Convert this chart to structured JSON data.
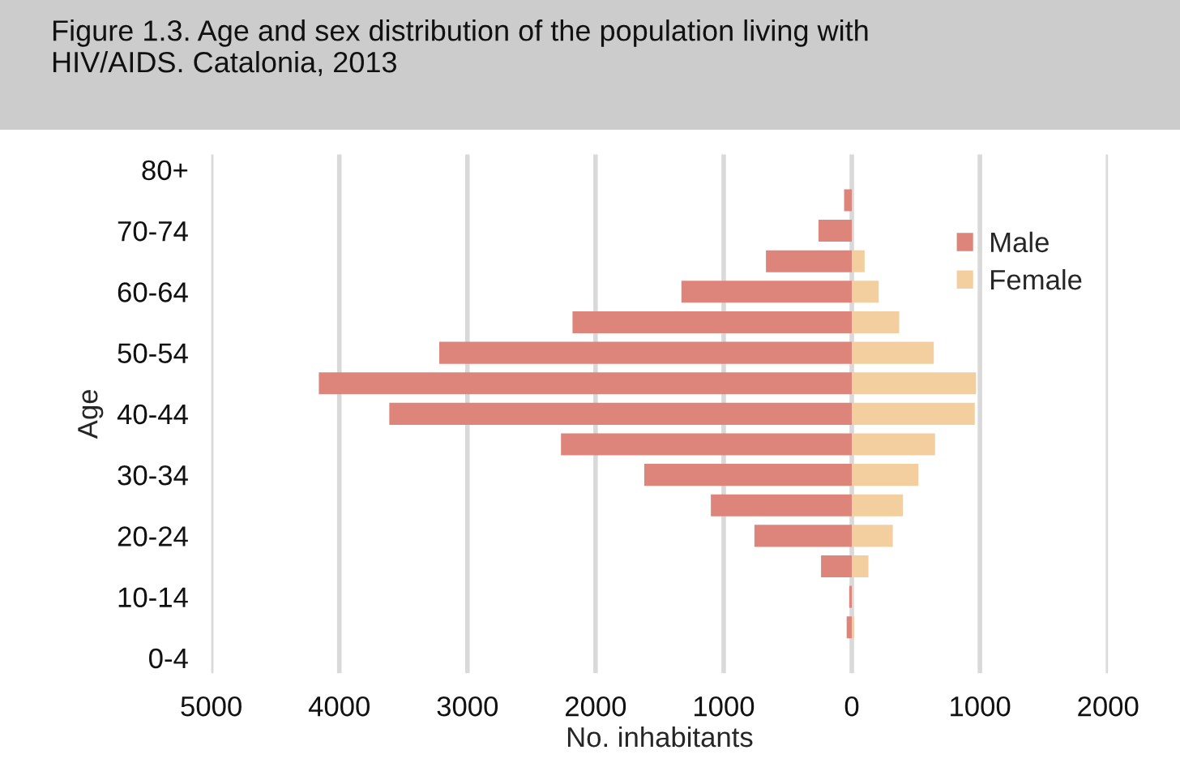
{
  "chart_data": {
    "type": "bar",
    "orientation": "horizontal",
    "title": "Figure 1.3. Age and sex distribution of the population living with HIV/AIDS. Catalonia, 2013",
    "xlabel": "No. inhabitants",
    "ylabel": "Age",
    "categories": [
      "80+",
      null,
      "70-74",
      null,
      "60-64",
      null,
      "50-54",
      null,
      "40-44",
      null,
      "30-34",
      null,
      "20-24",
      null,
      "10-14",
      null,
      "0-4"
    ],
    "series": [
      {
        "name": "Male",
        "color": "#dd857a",
        "values": [
          null,
          -60,
          -260,
          -670,
          -1330,
          -2180,
          -3220,
          -4160,
          -3610,
          -2270,
          -1620,
          -1100,
          -760,
          -240,
          -20,
          -40,
          null
        ]
      },
      {
        "name": "Female",
        "color": "#f3cf9f",
        "values": [
          null,
          null,
          null,
          100,
          210,
          370,
          640,
          970,
          960,
          650,
          520,
          400,
          320,
          130,
          null,
          20,
          null
        ]
      }
    ],
    "xlim": [
      -5000,
      2000
    ],
    "xticks": [
      {
        "value": -5000,
        "label": "5000"
      },
      {
        "value": -4000,
        "label": "4000"
      },
      {
        "value": -3000,
        "label": "3000"
      },
      {
        "value": -2000,
        "label": "2000"
      },
      {
        "value": -1000,
        "label": "1000"
      },
      0,
      1000,
      2000
    ],
    "grid": "x",
    "legend": "top right",
    "stacked": true
  }
}
